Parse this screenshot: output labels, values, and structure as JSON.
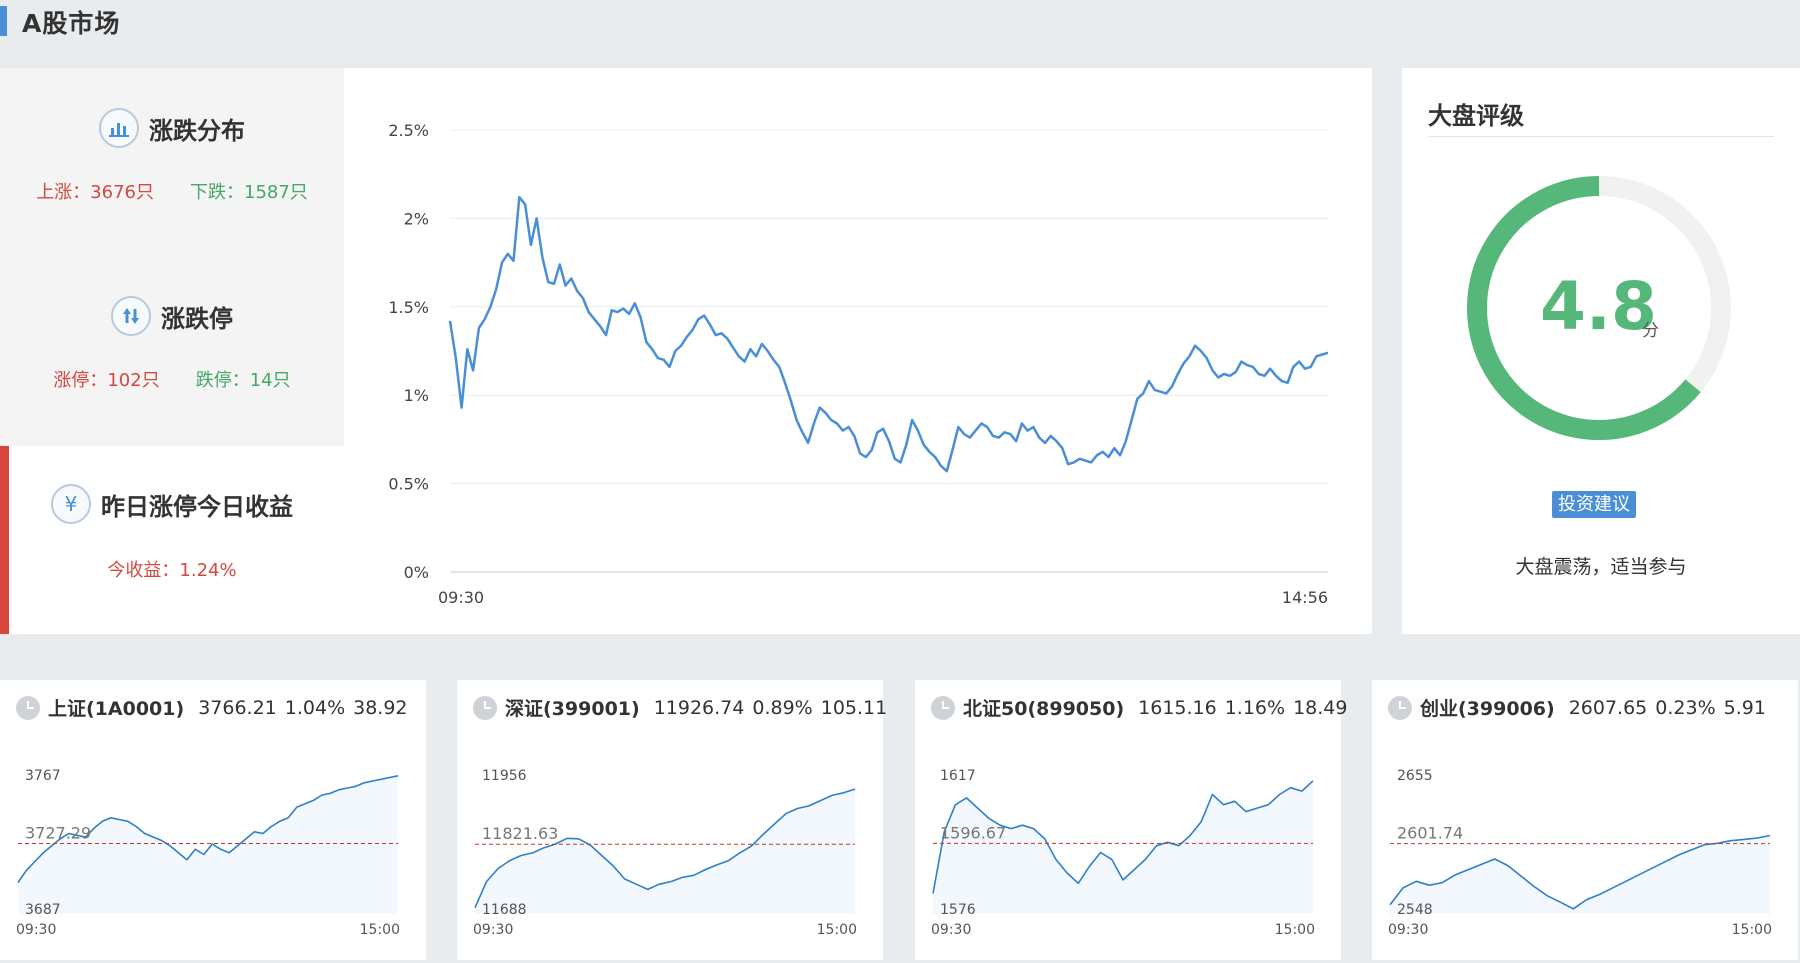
{
  "page": {
    "title": "A股市场"
  },
  "stats": {
    "distribution": {
      "title": "涨跌分布",
      "up": "上涨：3676只",
      "down": "下跌：1587只"
    },
    "limit": {
      "title": "涨跌停",
      "up": "涨停：102只",
      "down": "跌停：14只"
    },
    "yesterday": {
      "title": "昨日涨停今日收益",
      "ret": "今收益：1.24%"
    }
  },
  "rating": {
    "title": "大盘评级",
    "score": "4.8",
    "score_unit": "分",
    "score_fraction": 0.64,
    "advice_label": "投资建议",
    "advice": "大盘震荡，适当参与"
  },
  "colors": {
    "up": "#d24a3f",
    "down": "#45a866",
    "line": "#4a8fd6",
    "gauge": "#55b77a"
  },
  "chart_data": [
    {
      "type": "line",
      "series": [
        {
          "values": [
            1.42,
            1.21,
            0.93,
            1.26,
            1.14,
            1.38,
            1.43,
            1.5,
            1.6,
            1.75,
            1.8,
            1.76,
            2.12,
            2.08,
            1.85,
            2.0,
            1.78,
            1.64,
            1.63,
            1.74,
            1.62,
            1.66,
            1.59,
            1.55,
            1.47,
            1.43,
            1.39,
            1.34,
            1.48,
            1.47,
            1.49,
            1.46,
            1.52,
            1.44,
            1.3,
            1.26,
            1.21,
            1.2,
            1.16,
            1.25,
            1.28,
            1.33,
            1.37,
            1.43,
            1.45,
            1.4,
            1.34,
            1.35,
            1.32,
            1.27,
            1.22,
            1.19,
            1.26,
            1.22,
            1.29,
            1.25,
            1.2,
            1.16,
            1.07,
            0.97,
            0.86,
            0.79,
            0.73,
            0.84,
            0.93,
            0.9,
            0.86,
            0.84,
            0.8,
            0.82,
            0.77,
            0.67,
            0.65,
            0.69,
            0.79,
            0.81,
            0.74,
            0.64,
            0.62,
            0.72,
            0.86,
            0.8,
            0.72,
            0.68,
            0.65,
            0.6,
            0.57,
            0.69,
            0.82,
            0.78,
            0.76,
            0.8,
            0.84,
            0.82,
            0.77,
            0.76,
            0.79,
            0.78,
            0.74,
            0.84,
            0.8,
            0.82,
            0.76,
            0.73,
            0.77,
            0.74,
            0.7,
            0.61,
            0.62,
            0.64,
            0.63,
            0.62,
            0.66,
            0.68,
            0.65,
            0.7,
            0.66,
            0.74,
            0.86,
            0.98,
            1.01,
            1.08,
            1.03,
            1.02,
            1.01,
            1.05,
            1.12,
            1.18,
            1.22,
            1.28,
            1.25,
            1.21,
            1.14,
            1.1,
            1.12,
            1.11,
            1.13,
            1.19,
            1.17,
            1.16,
            1.12,
            1.11,
            1.15,
            1.11,
            1.08,
            1.07,
            1.16,
            1.19,
            1.15,
            1.16,
            1.22,
            1.23,
            1.24
          ]
        }
      ],
      "x_ticks": [
        "09:30",
        "14:56"
      ],
      "y_ticks": [
        "2.5%",
        "2%",
        "1.5%",
        "1%",
        "0.5%",
        "0%"
      ],
      "ylim": [
        0,
        2.5
      ],
      "grid": true
    },
    {
      "type": "area",
      "name": "上证(1A0001)",
      "price": "3766.21",
      "pct": "1.04%",
      "chg": "38.92",
      "y_max_label": "3767",
      "y_min_label": "3687",
      "ref_label": "3727.29",
      "x_ticks": [
        "09:30",
        "15:00"
      ],
      "ylim": [
        3687,
        3767
      ],
      "ref": 3727.29,
      "values": [
        3705,
        3712,
        3717,
        3722,
        3726,
        3730,
        3733,
        3732,
        3731,
        3736,
        3740,
        3742,
        3741,
        3740,
        3737,
        3733,
        3731,
        3729,
        3726,
        3722,
        3718,
        3724,
        3721,
        3727,
        3724,
        3722,
        3726,
        3730,
        3734,
        3733,
        3737,
        3740,
        3742,
        3748,
        3750,
        3752,
        3755,
        3756,
        3758,
        3759,
        3760,
        3762,
        3763,
        3764,
        3765,
        3766
      ]
    },
    {
      "type": "area",
      "name": "深证(399001)",
      "price": "11926.74",
      "pct": "0.89%",
      "chg": "105.11",
      "y_max_label": "11956",
      "y_min_label": "11688",
      "ref_label": "11821.63",
      "x_ticks": [
        "09:30",
        "15:00"
      ],
      "ylim": [
        11688,
        11956
      ],
      "ref": 11821.63,
      "values": [
        11700,
        11750,
        11775,
        11790,
        11800,
        11805,
        11815,
        11822,
        11833,
        11832,
        11820,
        11800,
        11780,
        11755,
        11745,
        11735,
        11745,
        11750,
        11758,
        11762,
        11773,
        11782,
        11790,
        11805,
        11818,
        11840,
        11860,
        11880,
        11890,
        11895,
        11905,
        11915,
        11920,
        11927
      ]
    },
    {
      "type": "area",
      "name": "北证50(899050)",
      "price": "1615.16",
      "pct": "1.16%",
      "chg": "18.49",
      "y_max_label": "1617",
      "y_min_label": "1576",
      "ref_label": "1596.67",
      "x_ticks": [
        "09:30",
        "15:00"
      ],
      "ylim": [
        1576,
        1617
      ],
      "ref": 1596.67,
      "values": [
        1582,
        1600,
        1608,
        1610,
        1607,
        1604,
        1602,
        1601,
        1602,
        1601,
        1598,
        1592,
        1588,
        1585,
        1590,
        1594,
        1592,
        1586,
        1589,
        1592,
        1596,
        1597,
        1596,
        1599,
        1603,
        1611,
        1608,
        1609,
        1606,
        1607,
        1608,
        1611,
        1613,
        1612,
        1615
      ]
    },
    {
      "type": "area",
      "name": "创业(399006)",
      "price": "2607.65",
      "pct": "0.23%",
      "chg": "5.91",
      "y_max_label": "2655",
      "y_min_label": "2548",
      "ref_label": "2601.74",
      "x_ticks": [
        "09:30",
        "15:00"
      ],
      "ylim": [
        2548,
        2655
      ],
      "ref": 2601.74,
      "values": [
        2555,
        2568,
        2573,
        2570,
        2572,
        2578,
        2582,
        2586,
        2590,
        2585,
        2577,
        2569,
        2562,
        2557,
        2552,
        2559,
        2563,
        2568,
        2573,
        2578,
        2583,
        2588,
        2593,
        2597,
        2601,
        2602,
        2604,
        2605,
        2606,
        2608
      ]
    }
  ]
}
